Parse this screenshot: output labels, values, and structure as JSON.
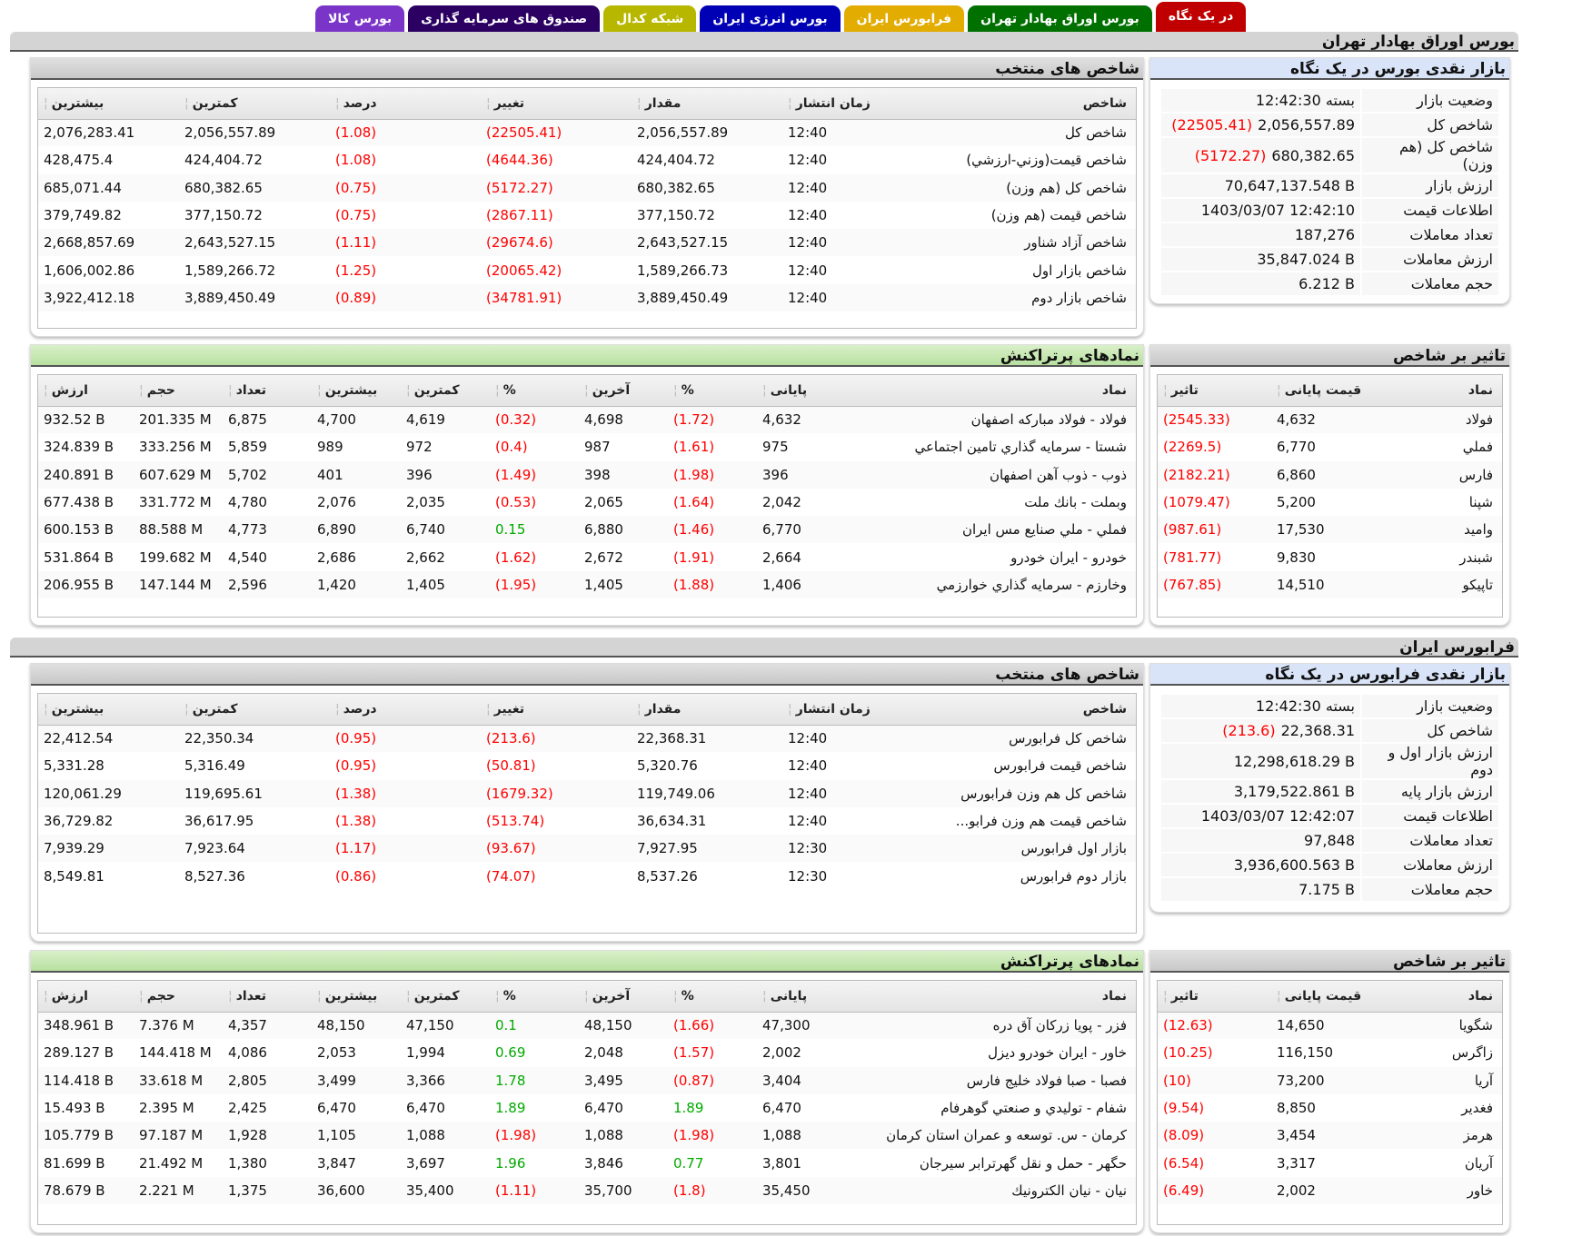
{
  "tabs": [
    {
      "label": "بورس کالا",
      "color": "#7a35c8"
    },
    {
      "label": "صندوق های سرمایه گذاری",
      "color": "#2b0062"
    },
    {
      "label": "شبکه کدال",
      "color": "#b7b700"
    },
    {
      "label": "بورس انرژی ایران",
      "color": "#0000b4"
    },
    {
      "label": "فرابورس ایران",
      "color": "#e2ac00"
    },
    {
      "label": "بورس اوراق بهادار تهران",
      "color": "#007000"
    },
    {
      "label": "در یک نگاه",
      "color": "#c00000",
      "active": true
    }
  ],
  "sections": [
    {
      "title": "بورس اوراق بهادار تهران",
      "glance": {
        "title": "بازار نقدی بورس در یک نگاه",
        "rows": [
          {
            "k": "وضعیت بازار",
            "v": "بسته 12:42:30",
            "c": ""
          },
          {
            "k": "شاخص کل",
            "v": "2,056,557.89",
            "c": "(22505.41)"
          },
          {
            "k": "شاخص کل (هم وزن)",
            "v": "680,382.65",
            "c": "(5172.27)"
          },
          {
            "k": "ارزش بازار",
            "v": "70,647,137.548 B",
            "c": ""
          },
          {
            "k": "اطلاعات قیمت",
            "v": "1403/03/07 12:42:10",
            "c": ""
          },
          {
            "k": "تعداد معاملات",
            "v": "187,276",
            "c": ""
          },
          {
            "k": "ارزش معاملات",
            "v": "35,847.024 B",
            "c": ""
          },
          {
            "k": "حجم معاملات",
            "v": "6.212 B",
            "c": ""
          }
        ]
      },
      "indices": {
        "title": "شاخص های منتخب",
        "headers": [
          "شاخص",
          "زمان انتشار",
          "مقدار",
          "تغییر",
          "درصد",
          "کمترین",
          "بیشترین"
        ],
        "rows": [
          [
            "شاخص کل",
            "12:40",
            "2,056,557.89",
            "(22505.41)",
            "(1.08)",
            "2,056,557.89",
            "2,076,283.41"
          ],
          [
            "شاخص قیمت(وزني-ارزشي)",
            "12:40",
            "424,404.72",
            "(4644.36)",
            "(1.08)",
            "424,404.72",
            "428,475.4"
          ],
          [
            "شاخص کل (هم وزن)",
            "12:40",
            "680,382.65",
            "(5172.27)",
            "(0.75)",
            "680,382.65",
            "685,071.44"
          ],
          [
            "شاخص قیمت (هم وزن)",
            "12:40",
            "377,150.72",
            "(2867.11)",
            "(0.75)",
            "377,150.72",
            "379,749.82"
          ],
          [
            "شاخص آزاد شناور",
            "12:40",
            "2,643,527.15",
            "(29674.6)",
            "(1.11)",
            "2,643,527.15",
            "2,668,857.69"
          ],
          [
            "شاخص بازار اول",
            "12:40",
            "1,589,266.73",
            "(20065.42)",
            "(1.25)",
            "1,589,266.72",
            "1,606,002.86"
          ],
          [
            "شاخص بازار دوم",
            "12:40",
            "3,889,450.49",
            "(34781.91)",
            "(0.89)",
            "3,889,450.49",
            "3,922,412.18"
          ]
        ]
      },
      "impact": {
        "title": "تاثیر بر شاخص",
        "headers": [
          "نماد",
          "قیمت پایانی",
          "تاثیر"
        ],
        "rows": [
          [
            "فولاد",
            "4,632",
            "(2545.33)"
          ],
          [
            "فملي",
            "6,770",
            "(2269.5)"
          ],
          [
            "فارس",
            "6,860",
            "(2182.21)"
          ],
          [
            "شپنا",
            "5,200",
            "(1079.47)"
          ],
          [
            "وامید",
            "17,530",
            "(987.61)"
          ],
          [
            "شبندر",
            "9,830",
            "(781.77)"
          ],
          [
            "تاپیکو",
            "14,510",
            "(767.85)"
          ]
        ]
      },
      "trading": {
        "title": "نمادهای پرتراکنش",
        "headers": [
          "نماد",
          "پایانی",
          "%",
          "آخرین",
          "%",
          "کمترین",
          "بیشترین",
          "تعداد",
          "حجم",
          "ارزش"
        ],
        "rows": [
          [
            "فولاد - فولاد مبارکه اصفهان",
            "4,632",
            "(1.72)",
            "4,698",
            "(0.32)",
            "4,619",
            "4,700",
            "6,875",
            "201.335 M",
            "932.52 B"
          ],
          [
            "شستا - سرمايه گذاري تامين اجتماعي",
            "975",
            "(1.61)",
            "987",
            "(0.4)",
            "972",
            "989",
            "5,859",
            "333.256 M",
            "324.839 B"
          ],
          [
            "ذوب - ذوب آهن اصفهان",
            "396",
            "(1.98)",
            "398",
            "(1.49)",
            "396",
            "401",
            "5,702",
            "607.629 M",
            "240.891 B"
          ],
          [
            "وبملت - بانك ملت",
            "2,042",
            "(1.64)",
            "2,065",
            "(0.53)",
            "2,035",
            "2,076",
            "4,780",
            "331.772 M",
            "677.438 B"
          ],
          [
            "فملي - ملي صنايع مس ايران",
            "6,770",
            "(1.46)",
            "6,880",
            "0.15",
            "6,740",
            "6,890",
            "4,773",
            "88.588 M",
            "600.153 B"
          ],
          [
            "خودرو - ايران خودرو",
            "2,664",
            "(1.91)",
            "2,672",
            "(1.62)",
            "2,662",
            "2,686",
            "4,540",
            "199.682 M",
            "531.864 B"
          ],
          [
            "وخارزم - سرمايه گذاري خوارزمي",
            "1,406",
            "(1.88)",
            "1,405",
            "(1.95)",
            "1,405",
            "1,420",
            "2,596",
            "147.144 M",
            "206.955 B"
          ]
        ]
      }
    },
    {
      "title": "فرابورس ایران",
      "glance": {
        "title": "بازار نقدی فرابورس در یک نگاه",
        "rows": [
          {
            "k": "وضعیت بازار",
            "v": "بسته 12:42:30",
            "c": ""
          },
          {
            "k": "شاخص کل",
            "v": "22,368.31",
            "c": "(213.6)"
          },
          {
            "k": "ارزش بازار اول و دوم",
            "v": "12,298,618.29 B",
            "c": ""
          },
          {
            "k": "ارزش بازار پایه",
            "v": "3,179,522.861 B",
            "c": ""
          },
          {
            "k": "اطلاعات قیمت",
            "v": "1403/03/07 12:42:07",
            "c": ""
          },
          {
            "k": "تعداد معاملات",
            "v": "97,848",
            "c": ""
          },
          {
            "k": "ارزش معاملات",
            "v": "3,936,600.563 B",
            "c": ""
          },
          {
            "k": "حجم معاملات",
            "v": "7.175 B",
            "c": ""
          }
        ]
      },
      "indices": {
        "title": "شاخص های منتخب",
        "headers": [
          "شاخص",
          "زمان انتشار",
          "مقدار",
          "تغییر",
          "درصد",
          "کمترین",
          "بیشترین"
        ],
        "rows": [
          [
            "شاخص کل فرابورس",
            "12:40",
            "22,368.31",
            "(213.6)",
            "(0.95)",
            "22,350.34",
            "22,412.54"
          ],
          [
            "شاخص قیمت فرابورس",
            "12:40",
            "5,320.76",
            "(50.81)",
            "(0.95)",
            "5,316.49",
            "5,331.28"
          ],
          [
            "شاخص کل هم وزن فرابورس",
            "12:40",
            "119,749.06",
            "(1679.32)",
            "(1.38)",
            "119,695.61",
            "120,061.29"
          ],
          [
            "شاخص قیمت هم وزن فرابو...",
            "12:40",
            "36,634.31",
            "(513.74)",
            "(1.38)",
            "36,617.95",
            "36,729.82"
          ],
          [
            "بازار اول فرابورس",
            "12:30",
            "7,927.95",
            "(93.67)",
            "(1.17)",
            "7,923.64",
            "7,939.29"
          ],
          [
            "بازار دوم فرابورس",
            "12:30",
            "8,537.26",
            "(74.07)",
            "(0.86)",
            "8,527.36",
            "8,549.81"
          ]
        ]
      },
      "impact": {
        "title": "تاثیر بر شاخص",
        "headers": [
          "نماد",
          "قیمت پایانی",
          "تاثیر"
        ],
        "rows": [
          [
            "شگويا",
            "14,650",
            "(12.63)"
          ],
          [
            "زاگرس",
            "116,150",
            "(10.25)"
          ],
          [
            "آريا",
            "73,200",
            "(10)"
          ],
          [
            "فغدير",
            "8,850",
            "(9.54)"
          ],
          [
            "هرمز",
            "3,454",
            "(8.09)"
          ],
          [
            "آريان",
            "3,317",
            "(6.54)"
          ],
          [
            "خاور",
            "2,002",
            "(6.49)"
          ]
        ]
      },
      "trading": {
        "title": "نمادهای پرتراکنش",
        "headers": [
          "نماد",
          "پایانی",
          "%",
          "آخرین",
          "%",
          "کمترین",
          "بیشترین",
          "تعداد",
          "حجم",
          "ارزش"
        ],
        "rows": [
          [
            "فزر - پويا زركان آق دره",
            "47,300",
            "(1.66)",
            "48,150",
            "0.1",
            "47,150",
            "48,150",
            "4,357",
            "7.376 M",
            "348.961 B"
          ],
          [
            "خاور - ايران خودرو ديزل",
            "2,002",
            "(1.57)",
            "2,048",
            "0.69",
            "1,994",
            "2,053",
            "4,086",
            "144.418 M",
            "289.127 B"
          ],
          [
            "فصبا - صبا فولاد خليج فارس",
            "3,404",
            "(0.87)",
            "3,495",
            "1.78",
            "3,366",
            "3,499",
            "2,805",
            "33.618 M",
            "114.418 B"
          ],
          [
            "شفام - توليدي و صنعتي گوهرفام",
            "6,470",
            "1.89",
            "6,470",
            "1.89",
            "6,470",
            "6,470",
            "2,425",
            "2.395 M",
            "15.493 B"
          ],
          [
            "كرمان - س. توسعه و عمران استان كرمان",
            "1,088",
            "(1.98)",
            "1,088",
            "(1.98)",
            "1,088",
            "1,105",
            "1,928",
            "97.187 M",
            "105.779 B"
          ],
          [
            "حگهر - حمل و نقل گهرترابر سيرجان",
            "3,801",
            "0.77",
            "3,846",
            "1.96",
            "3,697",
            "3,847",
            "1,380",
            "21.492 M",
            "81.699 B"
          ],
          [
            "نيان - نيان الكترونيك",
            "35,450",
            "(1.8)",
            "35,700",
            "(1.11)",
            "35,400",
            "36,600",
            "1,375",
            "2.221 M",
            "78.679 B"
          ]
        ]
      }
    }
  ],
  "colors": {
    "negative": "#ff0000",
    "positive": "#00aa00"
  }
}
